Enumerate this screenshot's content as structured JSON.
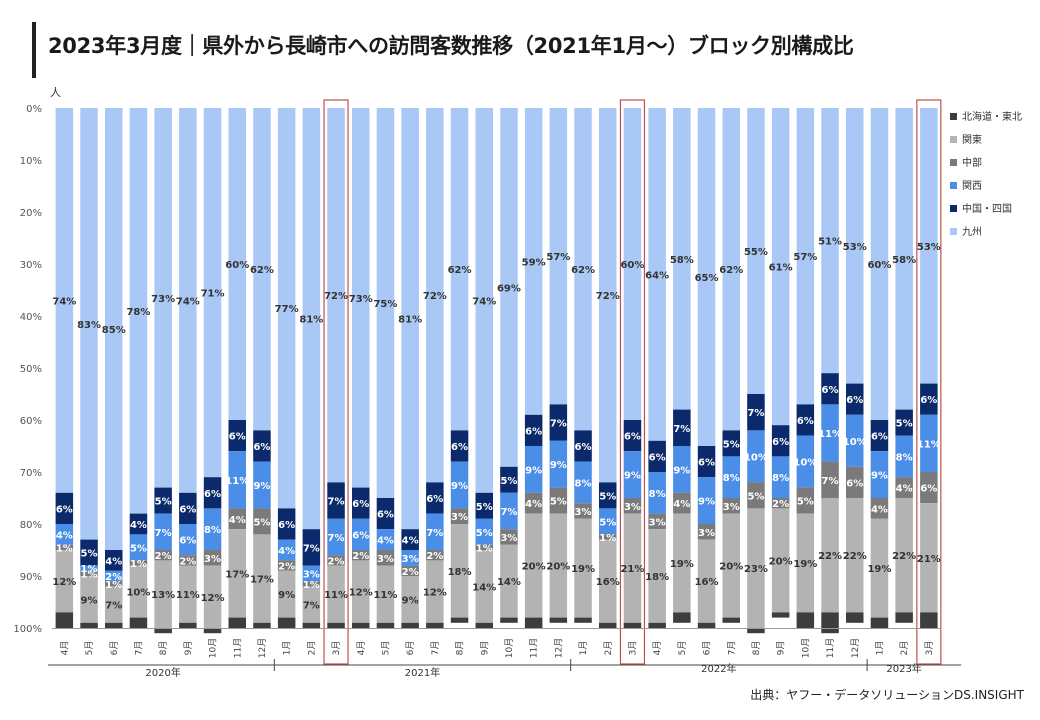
{
  "title": "2023年3月度｜県外から長崎市への訪問客数推移（2021年1月～）ブロック別構成比",
  "source": "出典：ヤフー・データソリューションDS.INSIGHT",
  "chart_data": {
    "type": "bar",
    "stacked": true,
    "percent": true,
    "y_unit_label": "人",
    "ylim": [
      0,
      100
    ],
    "y_axis_inverted": true,
    "y_ticks": [
      "0%",
      "10%",
      "20%",
      "30%",
      "40%",
      "50%",
      "60%",
      "70%",
      "80%",
      "90%",
      "100%"
    ],
    "categories": [
      "4月",
      "5月",
      "6月",
      "7月",
      "8月",
      "9月",
      "10月",
      "11月",
      "12月",
      "1月",
      "2月",
      "3月",
      "4月",
      "5月",
      "6月",
      "7月",
      "8月",
      "9月",
      "10月",
      "11月",
      "12月",
      "1月",
      "2月",
      "3月",
      "4月",
      "5月",
      "6月",
      "7月",
      "8月",
      "9月",
      "10月",
      "11月",
      "12月",
      "1月",
      "2月",
      "3月"
    ],
    "year_groups": [
      {
        "label": "2020年",
        "start": 0,
        "end": 8
      },
      {
        "label": "2021年",
        "start": 9,
        "end": 20
      },
      {
        "label": "2022年",
        "start": 21,
        "end": 32
      },
      {
        "label": "2023年",
        "start": 33,
        "end": 35
      }
    ],
    "highlighted": [
      11,
      23,
      35
    ],
    "series": [
      {
        "name": "九州",
        "color": "#a9c8f5",
        "text_color": "#333333",
        "values": [
          74,
          83,
          85,
          78,
          73,
          74,
          71,
          60,
          62,
          77,
          81,
          72,
          73,
          75,
          81,
          72,
          62,
          74,
          69,
          59,
          57,
          62,
          72,
          60,
          64,
          58,
          65,
          62,
          55,
          61,
          57,
          51,
          53,
          60,
          58,
          53
        ],
        "labels": [
          "74%",
          "83%",
          "85%",
          "78%",
          "73%",
          "74%",
          "71%",
          "60%",
          "62%",
          "77%",
          "81%",
          "72%",
          "73%",
          "75%",
          "81%",
          "72%",
          "62%",
          "74%",
          "69%",
          "59%",
          "57%",
          "62%",
          "72%",
          "60%",
          "64%",
          "58%",
          "65%",
          "62%",
          "55%",
          "61%",
          "57%",
          "51%",
          "53%",
          "60%",
          "58%",
          "53%"
        ]
      },
      {
        "name": "中国・四国",
        "color": "#0b2a6b",
        "text_color": "#ffffff",
        "values": [
          6,
          5,
          4,
          4,
          5,
          6,
          6,
          6,
          6,
          6,
          7,
          7,
          6,
          6,
          4,
          6,
          6,
          5,
          5,
          6,
          7,
          6,
          5,
          6,
          6,
          7,
          6,
          5,
          7,
          6,
          6,
          6,
          6,
          6,
          5,
          6
        ],
        "labels": [
          "6%",
          "5%",
          "4%",
          "4%",
          "5%",
          "6%",
          "6%",
          "6%",
          "6%",
          "6%",
          "7%",
          "7%",
          "6%",
          "6%",
          "4%",
          "6%",
          "6%",
          "5%",
          "5%",
          "6%",
          "7%",
          "6%",
          "5%",
          "6%",
          "6%",
          "7%",
          "6%",
          "5%",
          "7%",
          "6%",
          "6%",
          "6%",
          "6%",
          "6%",
          "5%",
          "6%"
        ]
      },
      {
        "name": "関西",
        "color": "#4a8ee8",
        "text_color": "#ffffff",
        "values": [
          4,
          1,
          2,
          5,
          7,
          6,
          8,
          11,
          9,
          4,
          3,
          7,
          6,
          4,
          3,
          7,
          9,
          5,
          7,
          9,
          9,
          8,
          5,
          9,
          8,
          9,
          9,
          8,
          10,
          8,
          10,
          11,
          10,
          9,
          8,
          11
        ],
        "labels": [
          "4%",
          "1%",
          "2%",
          "5%",
          "7%",
          "6%",
          "8%",
          "11%",
          "9%",
          "4%",
          "3%",
          "7%",
          "6%",
          "4%",
          "3%",
          "7%",
          "9%",
          "5%",
          "7%",
          "9%",
          "9%",
          "8%",
          "5%",
          "9%",
          "8%",
          "9%",
          "9%",
          "8%",
          "10%",
          "8%",
          "10%",
          "11%",
          "10%",
          "9%",
          "8%",
          "11%"
        ]
      },
      {
        "name": "中部",
        "color": "#7a7a7a",
        "text_color": "#ffffff",
        "values": [
          1,
          1,
          1,
          1,
          2,
          2,
          3,
          4,
          5,
          2,
          1,
          2,
          2,
          3,
          2,
          2,
          3,
          1,
          3,
          4,
          5,
          3,
          1,
          3,
          3,
          4,
          3,
          3,
          5,
          2,
          5,
          7,
          6,
          4,
          4,
          6
        ],
        "labels": [
          "1%",
          "1%",
          "1%",
          "1%",
          "2%",
          "2%",
          "3%",
          "4%",
          "5%",
          "2%",
          "1%",
          "2%",
          "2%",
          "3%",
          "2%",
          "2%",
          "3%",
          "1%",
          "3%",
          "4%",
          "5%",
          "3%",
          "1%",
          "3%",
          "3%",
          "4%",
          "3%",
          "3%",
          "5%",
          "2%",
          "5%",
          "7%",
          "6%",
          "4%",
          "4%",
          "6%"
        ]
      },
      {
        "name": "関東",
        "color": "#b3b3b3",
        "text_color": "#333333",
        "values": [
          12,
          9,
          7,
          10,
          13,
          11,
          12,
          17,
          17,
          9,
          7,
          11,
          12,
          11,
          9,
          12,
          18,
          14,
          14,
          20,
          20,
          19,
          16,
          21,
          18,
          19,
          16,
          20,
          23,
          20,
          19,
          22,
          22,
          19,
          22,
          21
        ],
        "labels": [
          "12%",
          "9%",
          "7%",
          "10%",
          "13%",
          "11%",
          "12%",
          "17%",
          "17%",
          "9%",
          "7%",
          "11%",
          "12%",
          "11%",
          "9%",
          "12%",
          "18%",
          "14%",
          "14%",
          "20%",
          "20%",
          "19%",
          "16%",
          "21%",
          "18%",
          "19%",
          "16%",
          "20%",
          "23%",
          "20%",
          "19%",
          "22%",
          "22%",
          "19%",
          "22%",
          "21%"
        ]
      },
      {
        "name": "北海道・東北",
        "color": "#3d3d3d",
        "text_color": "#ffffff",
        "values": [
          3,
          1,
          1,
          2,
          1,
          1,
          1,
          2,
          1,
          2,
          1,
          1,
          1,
          1,
          1,
          1,
          1,
          1,
          1,
          2,
          1,
          1,
          1,
          1,
          1,
          2,
          1,
          1,
          1,
          1,
          3,
          4,
          2,
          2,
          2,
          3
        ],
        "labels": [
          "3%",
          "1%",
          "1%",
          "2%",
          "1%",
          "1%",
          "1%",
          "2%",
          "1%",
          "2%",
          "1%",
          "1%",
          "1%",
          "1%",
          "1%",
          "1%",
          "1%",
          "1%",
          "1%",
          "2%",
          "1%",
          "1%",
          "1%",
          "1%",
          "1%",
          "2%",
          "1%",
          "1%",
          "1%",
          "1%",
          "3%",
          "4%",
          "2%",
          "2%",
          "2%",
          "3%"
        ]
      }
    ],
    "legend_order": [
      "北海道・東北",
      "関東",
      "中部",
      "関西",
      "中国・四国",
      "九州"
    ],
    "legend_position": "right"
  }
}
